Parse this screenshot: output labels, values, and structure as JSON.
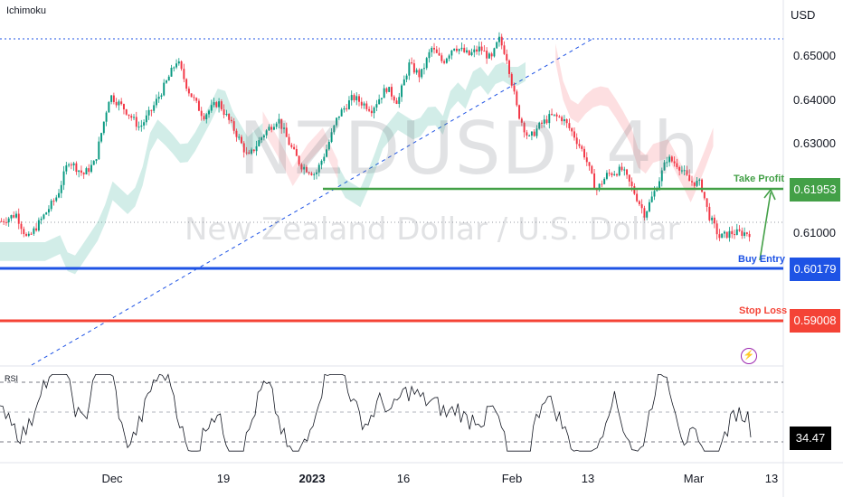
{
  "indicator_label": "Ichimoku",
  "currency": "USD",
  "watermark": {
    "symbol": "NZDUSD, 4h",
    "name": "New Zealand Dollar / U.S. Dollar"
  },
  "y_axis": {
    "ticks": [
      "0.65000",
      "0.64000",
      "0.63000",
      "0.61000"
    ]
  },
  "x_axis": {
    "ticks": [
      "Dec",
      "19",
      "2023",
      "16",
      "Feb",
      "13",
      "Mar",
      "13"
    ]
  },
  "levels": {
    "take_profit": {
      "label": "Take Profit",
      "value": "0.61953",
      "color": "#43a047"
    },
    "buy_entry": {
      "label": "Buy Entry",
      "value": "0.60179",
      "color": "#1e53e5"
    },
    "stop_loss": {
      "label": "Stop Loss",
      "value": "0.59008",
      "color": "#f44336"
    }
  },
  "rsi": {
    "label": "RSI",
    "value": "34.47"
  },
  "icons": {
    "alert": "lightning-bolt-icon"
  },
  "chart_data": {
    "type": "candlestick",
    "title": "",
    "symbol": "NZDUSD",
    "timeframe": "4h",
    "ylim": [
      0.5835,
      0.655
    ],
    "price_path": [
      [
        0,
        0.6135
      ],
      [
        0.02,
        0.615
      ],
      [
        0.035,
        0.6095
      ],
      [
        0.05,
        0.613
      ],
      [
        0.075,
        0.619
      ],
      [
        0.09,
        0.6265
      ],
      [
        0.11,
        0.6235
      ],
      [
        0.125,
        0.626
      ],
      [
        0.145,
        0.6405
      ],
      [
        0.165,
        0.6375
      ],
      [
        0.185,
        0.6335
      ],
      [
        0.2,
        0.637
      ],
      [
        0.22,
        0.643
      ],
      [
        0.235,
        0.648
      ],
      [
        0.25,
        0.6415
      ],
      [
        0.27,
        0.636
      ],
      [
        0.29,
        0.639
      ],
      [
        0.315,
        0.632
      ],
      [
        0.33,
        0.627
      ],
      [
        0.35,
        0.632
      ],
      [
        0.37,
        0.6355
      ],
      [
        0.385,
        0.63
      ],
      [
        0.4,
        0.6255
      ],
      [
        0.42,
        0.6235
      ],
      [
        0.435,
        0.629
      ],
      [
        0.45,
        0.636
      ],
      [
        0.47,
        0.64
      ],
      [
        0.495,
        0.6375
      ],
      [
        0.515,
        0.642
      ],
      [
        0.53,
        0.639
      ],
      [
        0.545,
        0.647
      ],
      [
        0.56,
        0.6445
      ],
      [
        0.575,
        0.6505
      ],
      [
        0.59,
        0.6475
      ],
      [
        0.605,
        0.651
      ],
      [
        0.625,
        0.649
      ],
      [
        0.64,
        0.6505
      ],
      [
        0.655,
        0.648
      ],
      [
        0.665,
        0.6525
      ],
      [
        0.675,
        0.649
      ],
      [
        0.69,
        0.637
      ],
      [
        0.705,
        0.631
      ],
      [
        0.72,
        0.634
      ],
      [
        0.735,
        0.636
      ],
      [
        0.75,
        0.6355
      ],
      [
        0.765,
        0.632
      ],
      [
        0.78,
        0.6275
      ],
      [
        0.795,
        0.62
      ],
      [
        0.81,
        0.6235
      ],
      [
        0.83,
        0.6245
      ],
      [
        0.845,
        0.62
      ],
      [
        0.86,
        0.615
      ],
      [
        0.875,
        0.6205
      ],
      [
        0.89,
        0.627
      ],
      [
        0.905,
        0.6255
      ],
      [
        0.92,
        0.622
      ],
      [
        0.935,
        0.6215
      ],
      [
        0.945,
        0.615
      ],
      [
        0.96,
        0.61
      ],
      [
        0.975,
        0.611
      ]
    ],
    "series": [
      {
        "name": "Take Profit",
        "value": 0.61953
      },
      {
        "name": "Buy Entry",
        "value": 0.60179
      },
      {
        "name": "Stop Loss",
        "value": 0.59008
      }
    ],
    "rsi": {
      "value": 34.47,
      "levels": [
        70,
        50,
        30
      ]
    },
    "grid": false
  }
}
